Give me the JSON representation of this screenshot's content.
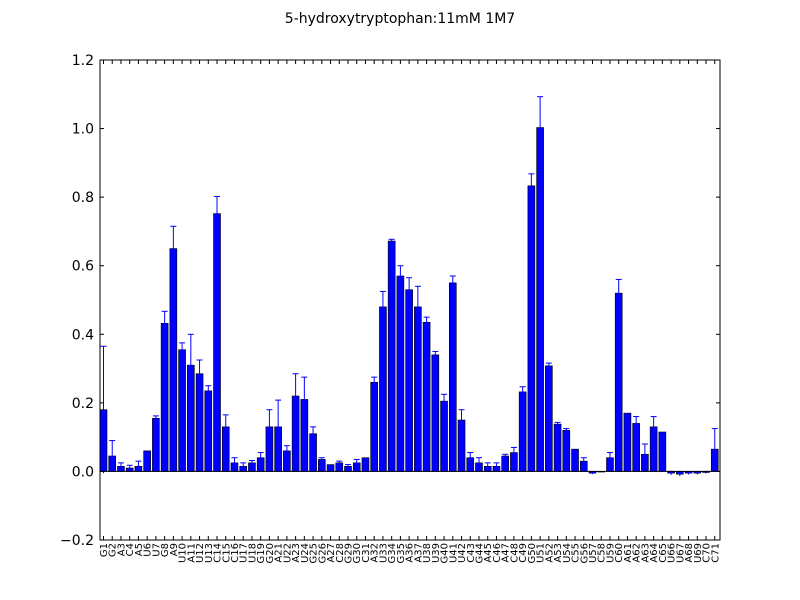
{
  "chart_data": {
    "type": "bar",
    "title": "5-hydroxytryptophan:11mM  1M7",
    "xlabel": "",
    "ylabel": "",
    "ylim": [
      -0.2,
      1.2
    ],
    "yticks": [
      -0.2,
      0.0,
      0.2,
      0.4,
      0.6,
      0.8,
      1.0,
      1.2
    ],
    "ytick_labels": [
      "−0.2",
      "0.0",
      "0.2",
      "0.4",
      "0.6",
      "0.8",
      "1.0",
      "1.2"
    ],
    "grid": false,
    "bar_color": "#0000ff",
    "error_color": "#0000ff",
    "categories": [
      "G1",
      "G2",
      "A3",
      "C4",
      "A5",
      "U6",
      "U7",
      "G8",
      "A9",
      "U10",
      "A11",
      "U12",
      "U13",
      "C14",
      "C15",
      "C16",
      "U17",
      "U18",
      "G19",
      "G20",
      "A21",
      "U22",
      "A23",
      "U24",
      "G25",
      "G26",
      "A27",
      "C28",
      "G29",
      "G30",
      "C31",
      "A32",
      "U33",
      "G34",
      "G35",
      "A36",
      "A37",
      "U38",
      "U39",
      "G40",
      "U41",
      "U42",
      "C43",
      "G44",
      "A45",
      "C46",
      "A47",
      "C48",
      "C49",
      "G50",
      "U51",
      "A52",
      "A53",
      "U54",
      "C55",
      "G56",
      "U57",
      "C58",
      "U59",
      "C60",
      "A61",
      "A62",
      "A63",
      "A64",
      "C65",
      "U66",
      "U67",
      "A68",
      "U69",
      "C70",
      "C71"
    ],
    "values": [
      0.18,
      0.045,
      0.015,
      0.01,
      0.015,
      0.06,
      0.155,
      0.432,
      0.65,
      0.355,
      0.31,
      0.285,
      0.235,
      0.752,
      0.13,
      0.025,
      0.015,
      0.025,
      0.04,
      0.13,
      0.13,
      0.06,
      0.22,
      0.21,
      0.11,
      0.035,
      0.02,
      0.025,
      0.015,
      0.025,
      0.04,
      0.26,
      0.48,
      0.672,
      0.57,
      0.53,
      0.48,
      0.435,
      0.34,
      0.205,
      0.55,
      0.15,
      0.04,
      0.025,
      0.015,
      0.015,
      0.045,
      0.055,
      0.232,
      0.833,
      1.003,
      0.308,
      0.138,
      0.12,
      0.065,
      0.03,
      -0.005,
      0.0,
      0.04,
      0.52,
      0.17,
      0.14,
      0.05,
      0.13,
      0.115,
      -0.005,
      -0.008,
      -0.005,
      -0.005,
      -0.003,
      0.065
    ],
    "errors": [
      0.185,
      0.045,
      0.01,
      0.008,
      0.015,
      0.0,
      0.007,
      0.035,
      0.065,
      0.02,
      0.09,
      0.04,
      0.015,
      0.05,
      0.035,
      0.015,
      0.01,
      0.007,
      0.015,
      0.05,
      0.078,
      0.015,
      0.065,
      0.065,
      0.02,
      0.005,
      0.0,
      0.005,
      0.005,
      0.01,
      0.0,
      0.015,
      0.045,
      0.005,
      0.03,
      0.035,
      0.06,
      0.015,
      0.01,
      0.02,
      0.02,
      0.03,
      0.015,
      0.015,
      0.01,
      0.01,
      0.005,
      0.015,
      0.015,
      0.035,
      0.09,
      0.008,
      0.005,
      0.005,
      0.0,
      0.01,
      0.003,
      0.0,
      0.015,
      0.04,
      0.0,
      0.02,
      0.03,
      0.03,
      0.0,
      0.005,
      0.006,
      0.004,
      0.004,
      0.003,
      0.06
    ]
  }
}
